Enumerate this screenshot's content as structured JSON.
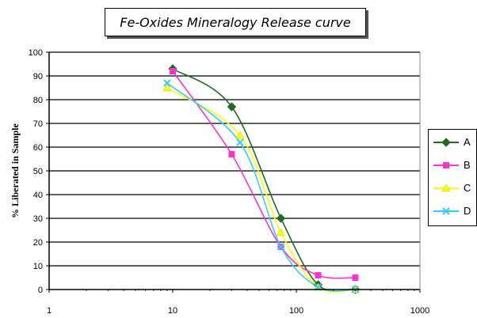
{
  "chart_data": {
    "type": "line",
    "title": "Fe-Oxides Mineralogy Release curve",
    "xlabel": "",
    "ylabel": "% Liberated in Sample",
    "xscale": "log",
    "xlim": [
      1,
      1000
    ],
    "ylim": [
      0,
      100
    ],
    "x_ticks": [
      "1",
      "10",
      "100",
      "1000"
    ],
    "y_ticks": [
      "0",
      "10",
      "20",
      "30",
      "40",
      "50",
      "60",
      "70",
      "80",
      "90",
      "100"
    ],
    "grid": "horizontal",
    "legend_position": "right",
    "series": [
      {
        "name": "A",
        "color": "#1f6b1f",
        "marker": "diamond",
        "points": [
          [
            10,
            93
          ],
          [
            30,
            77
          ],
          [
            75,
            30
          ],
          [
            150,
            2
          ],
          [
            300,
            0
          ]
        ]
      },
      {
        "name": "B",
        "color": "#ff33cc",
        "marker": "square",
        "points": [
          [
            10,
            92
          ],
          [
            30,
            57
          ],
          [
            75,
            18
          ],
          [
            150,
            6
          ],
          [
            300,
            5
          ]
        ]
      },
      {
        "name": "C",
        "color": "#ffff00",
        "marker": "triangle",
        "points": [
          [
            9,
            85
          ],
          [
            35,
            65
          ],
          [
            75,
            24
          ],
          [
            150,
            1
          ],
          [
            300,
            0
          ]
        ]
      },
      {
        "name": "D",
        "color": "#33ccff",
        "marker": "x",
        "points": [
          [
            9,
            87
          ],
          [
            35,
            62
          ],
          [
            75,
            18
          ],
          [
            150,
            1
          ],
          [
            300,
            0
          ]
        ]
      }
    ]
  }
}
